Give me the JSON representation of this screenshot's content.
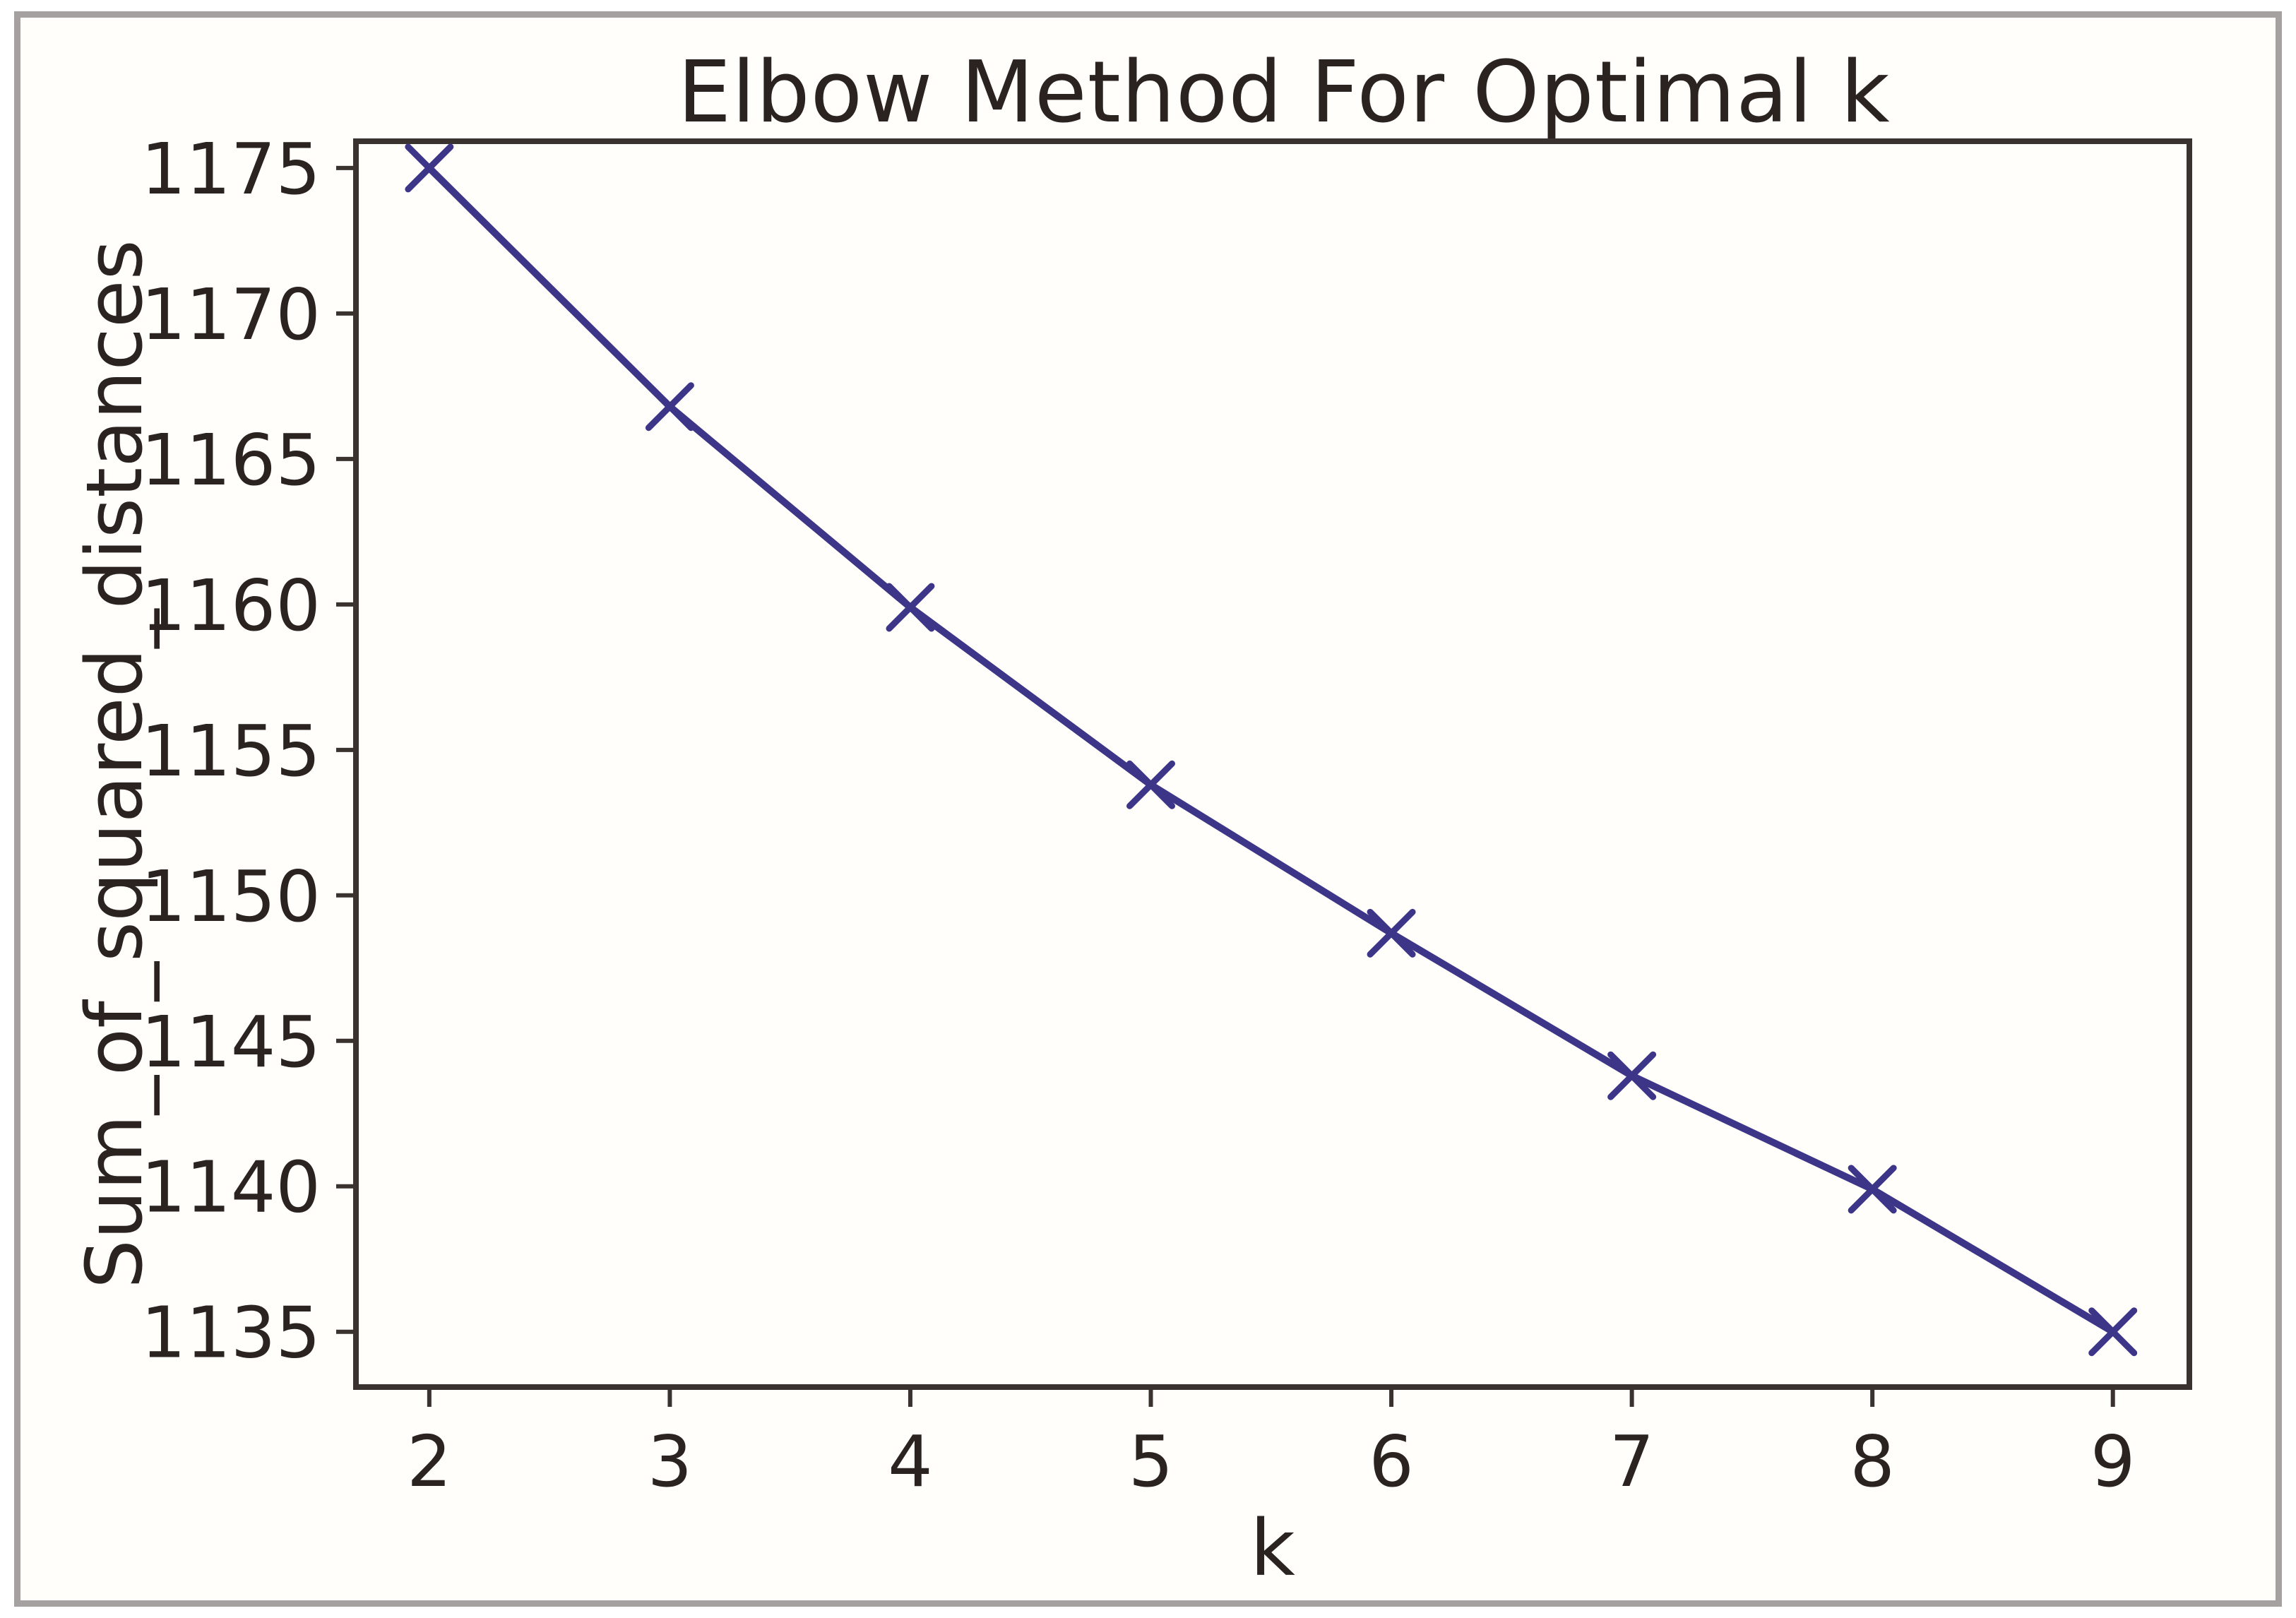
{
  "figure": {
    "colors": {
      "line": "#3d3588",
      "axis": "#3a322e",
      "text": "#2b2320",
      "figure_border": "#a4a1a0",
      "background": "#fffefb"
    }
  },
  "chart_data": {
    "type": "line",
    "title": "Elbow Method For Optimal k",
    "xlabel": "k",
    "ylabel": "Sum_of_squared_distances",
    "x": [
      2,
      3,
      4,
      5,
      6,
      7,
      8,
      9
    ],
    "y": [
      1175.0,
      1166.8,
      1159.9,
      1153.8,
      1148.7,
      1143.8,
      1139.9,
      1135.0
    ],
    "x_ticks": [
      2,
      3,
      4,
      5,
      6,
      7,
      8,
      9
    ],
    "y_ticks": [
      1135,
      1140,
      1145,
      1150,
      1155,
      1160,
      1165,
      1170,
      1175
    ],
    "xlim": [
      1.695,
      9.318
    ],
    "ylim": [
      1133.1,
      1175.92
    ],
    "marker": "x",
    "grid": false,
    "legend": null
  }
}
